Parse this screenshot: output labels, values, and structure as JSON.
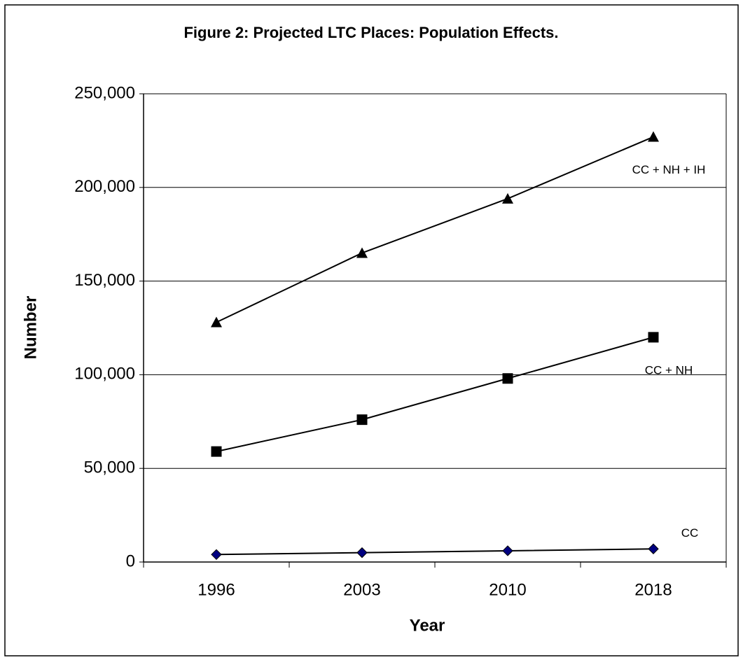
{
  "chart_data": {
    "type": "line",
    "title": "Figure 2: Projected LTC Places:  Population Effects.",
    "x_label": "Year",
    "y_label": "Number",
    "categories": [
      "1996",
      "2003",
      "2010",
      "2018"
    ],
    "series": [
      {
        "name": "CC + NH + IH",
        "color": "#000000",
        "marker": "triangle",
        "values": [
          128000,
          165000,
          194000,
          227000
        ]
      },
      {
        "name": "CC + NH",
        "color": "#000000",
        "marker": "square",
        "values": [
          59000,
          76000,
          98000,
          120000
        ]
      },
      {
        "name": "CC",
        "color": "#000080",
        "marker": "diamond",
        "values": [
          4000,
          5000,
          6000,
          7000
        ]
      }
    ],
    "ylim": [
      0,
      250000
    ],
    "yticks": [
      0,
      {
        "value": 50000,
        "label": "50,000"
      },
      {
        "value": 100000,
        "label": "100,000"
      },
      {
        "value": 150000,
        "label": "150,000"
      },
      {
        "value": 200000,
        "label": "200,000"
      },
      {
        "value": 250000,
        "label": "250,000"
      }
    ],
    "grid": true
  }
}
